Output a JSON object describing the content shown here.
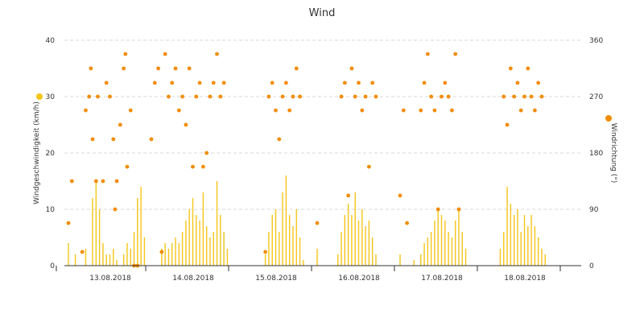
{
  "chart_data": {
    "type": "bar+scatter",
    "title": "Wind",
    "x_axis": {
      "type": "datetime",
      "tick_labels": [
        "13.08.2018",
        "14.08.2018",
        "15.08.2018",
        "16.08.2018",
        "17.08.2018",
        "18.08.2018"
      ]
    },
    "y_left": {
      "label": "Windgeschwindigkeit (km/h)",
      "min": 0,
      "max": 40,
      "ticks": [
        0,
        10,
        20,
        30,
        40
      ]
    },
    "y_right": {
      "label": "Windrichtung (°)",
      "min": 0,
      "max": 360,
      "ticks": [
        0,
        90,
        180,
        270,
        360
      ]
    },
    "grid": true,
    "colors": {
      "speed": "#f5c518",
      "direction": "#f28c00",
      "legend_speed_dot": "#f5c518",
      "legend_direction_dot": "#f28c00"
    },
    "series": [
      {
        "name": "Windgeschwindigkeit",
        "kind": "bars",
        "axis": "left",
        "points": [
          {
            "x": "2018-08-13 00:00",
            "y": 4
          },
          {
            "x": "2018-08-13 02:00",
            "y": 2
          },
          {
            "x": "2018-08-13 05:00",
            "y": 3
          },
          {
            "x": "2018-08-13 07:00",
            "y": 12
          },
          {
            "x": "2018-08-13 08:00",
            "y": 15
          },
          {
            "x": "2018-08-13 09:00",
            "y": 10
          },
          {
            "x": "2018-08-13 10:00",
            "y": 4
          },
          {
            "x": "2018-08-13 11:00",
            "y": 2
          },
          {
            "x": "2018-08-13 12:00",
            "y": 2
          },
          {
            "x": "2018-08-13 13:00",
            "y": 3
          },
          {
            "x": "2018-08-13 14:00",
            "y": 1
          },
          {
            "x": "2018-08-13 16:00",
            "y": 2
          },
          {
            "x": "2018-08-13 17:00",
            "y": 4
          },
          {
            "x": "2018-08-13 18:00",
            "y": 3
          },
          {
            "x": "2018-08-13 19:00",
            "y": 6
          },
          {
            "x": "2018-08-13 20:00",
            "y": 12
          },
          {
            "x": "2018-08-13 21:00",
            "y": 14
          },
          {
            "x": "2018-08-13 22:00",
            "y": 5
          },
          {
            "x": "2018-08-14 03:00",
            "y": 3
          },
          {
            "x": "2018-08-14 04:00",
            "y": 4
          },
          {
            "x": "2018-08-14 05:00",
            "y": 3
          },
          {
            "x": "2018-08-14 06:00",
            "y": 4
          },
          {
            "x": "2018-08-14 07:00",
            "y": 5
          },
          {
            "x": "2018-08-14 08:00",
            "y": 4
          },
          {
            "x": "2018-08-14 09:00",
            "y": 6
          },
          {
            "x": "2018-08-14 10:00",
            "y": 8
          },
          {
            "x": "2018-08-14 11:00",
            "y": 10
          },
          {
            "x": "2018-08-14 12:00",
            "y": 12
          },
          {
            "x": "2018-08-14 13:00",
            "y": 9
          },
          {
            "x": "2018-08-14 14:00",
            "y": 8
          },
          {
            "x": "2018-08-14 15:00",
            "y": 13
          },
          {
            "x": "2018-08-14 16:00",
            "y": 7
          },
          {
            "x": "2018-08-14 17:00",
            "y": 5
          },
          {
            "x": "2018-08-14 18:00",
            "y": 6
          },
          {
            "x": "2018-08-14 19:00",
            "y": 15
          },
          {
            "x": "2018-08-14 20:00",
            "y": 9
          },
          {
            "x": "2018-08-14 21:00",
            "y": 6
          },
          {
            "x": "2018-08-14 22:00",
            "y": 3
          },
          {
            "x": "2018-08-15 09:00",
            "y": 2
          },
          {
            "x": "2018-08-15 10:00",
            "y": 6
          },
          {
            "x": "2018-08-15 11:00",
            "y": 9
          },
          {
            "x": "2018-08-15 12:00",
            "y": 10
          },
          {
            "x": "2018-08-15 13:00",
            "y": 6
          },
          {
            "x": "2018-08-15 14:00",
            "y": 13
          },
          {
            "x": "2018-08-15 15:00",
            "y": 16
          },
          {
            "x": "2018-08-15 16:00",
            "y": 9
          },
          {
            "x": "2018-08-15 17:00",
            "y": 7
          },
          {
            "x": "2018-08-15 18:00",
            "y": 10
          },
          {
            "x": "2018-08-15 19:00",
            "y": 5
          },
          {
            "x": "2018-08-15 20:00",
            "y": 1
          },
          {
            "x": "2018-08-16 00:00",
            "y": 3
          },
          {
            "x": "2018-08-16 06:00",
            "y": 2
          },
          {
            "x": "2018-08-16 07:00",
            "y": 6
          },
          {
            "x": "2018-08-16 08:00",
            "y": 9
          },
          {
            "x": "2018-08-16 09:00",
            "y": 11
          },
          {
            "x": "2018-08-16 10:00",
            "y": 9
          },
          {
            "x": "2018-08-16 11:00",
            "y": 13
          },
          {
            "x": "2018-08-16 12:00",
            "y": 8
          },
          {
            "x": "2018-08-16 13:00",
            "y": 10
          },
          {
            "x": "2018-08-16 14:00",
            "y": 7
          },
          {
            "x": "2018-08-16 15:00",
            "y": 8
          },
          {
            "x": "2018-08-16 16:00",
            "y": 5
          },
          {
            "x": "2018-08-16 17:00",
            "y": 2
          },
          {
            "x": "2018-08-17 00:00",
            "y": 2
          },
          {
            "x": "2018-08-17 04:00",
            "y": 1
          },
          {
            "x": "2018-08-17 06:00",
            "y": 2
          },
          {
            "x": "2018-08-17 07:00",
            "y": 4
          },
          {
            "x": "2018-08-17 08:00",
            "y": 5
          },
          {
            "x": "2018-08-17 09:00",
            "y": 6
          },
          {
            "x": "2018-08-17 10:00",
            "y": 8
          },
          {
            "x": "2018-08-17 11:00",
            "y": 10
          },
          {
            "x": "2018-08-17 12:00",
            "y": 9
          },
          {
            "x": "2018-08-17 13:00",
            "y": 8
          },
          {
            "x": "2018-08-17 14:00",
            "y": 6
          },
          {
            "x": "2018-08-17 15:00",
            "y": 5
          },
          {
            "x": "2018-08-17 16:00",
            "y": 8
          },
          {
            "x": "2018-08-17 17:00",
            "y": 10
          },
          {
            "x": "2018-08-17 18:00",
            "y": 6
          },
          {
            "x": "2018-08-17 19:00",
            "y": 3
          },
          {
            "x": "2018-08-18 05:00",
            "y": 3
          },
          {
            "x": "2018-08-18 06:00",
            "y": 6
          },
          {
            "x": "2018-08-18 07:00",
            "y": 14
          },
          {
            "x": "2018-08-18 08:00",
            "y": 11
          },
          {
            "x": "2018-08-18 09:00",
            "y": 9
          },
          {
            "x": "2018-08-18 10:00",
            "y": 10
          },
          {
            "x": "2018-08-18 11:00",
            "y": 6
          },
          {
            "x": "2018-08-18 12:00",
            "y": 9
          },
          {
            "x": "2018-08-18 13:00",
            "y": 7
          },
          {
            "x": "2018-08-18 14:00",
            "y": 9
          },
          {
            "x": "2018-08-18 15:00",
            "y": 7
          },
          {
            "x": "2018-08-18 16:00",
            "y": 5
          },
          {
            "x": "2018-08-18 17:00",
            "y": 3
          },
          {
            "x": "2018-08-18 18:00",
            "y": 2
          }
        ]
      },
      {
        "name": "Windrichtung",
        "kind": "scatter",
        "axis": "right",
        "points": [
          {
            "x": "2018-08-13 00:00",
            "y": 68
          },
          {
            "x": "2018-08-13 01:00",
            "y": 135
          },
          {
            "x": "2018-08-13 04:00",
            "y": 22
          },
          {
            "x": "2018-08-13 05:00",
            "y": 248
          },
          {
            "x": "2018-08-13 06:00",
            "y": 270
          },
          {
            "x": "2018-08-13 06:30",
            "y": 315
          },
          {
            "x": "2018-08-13 07:00",
            "y": 202
          },
          {
            "x": "2018-08-13 08:00",
            "y": 135
          },
          {
            "x": "2018-08-13 08:30",
            "y": 270
          },
          {
            "x": "2018-08-13 10:00",
            "y": 135
          },
          {
            "x": "2018-08-13 11:00",
            "y": 292
          },
          {
            "x": "2018-08-13 12:00",
            "y": 270
          },
          {
            "x": "2018-08-13 13:00",
            "y": 202
          },
          {
            "x": "2018-08-13 13:30",
            "y": 90
          },
          {
            "x": "2018-08-13 14:00",
            "y": 135
          },
          {
            "x": "2018-08-13 15:00",
            "y": 225
          },
          {
            "x": "2018-08-13 16:00",
            "y": 315
          },
          {
            "x": "2018-08-13 16:30",
            "y": 338
          },
          {
            "x": "2018-08-13 17:00",
            "y": 158
          },
          {
            "x": "2018-08-13 18:00",
            "y": 248
          },
          {
            "x": "2018-08-13 19:00",
            "y": 0
          },
          {
            "x": "2018-08-13 20:00",
            "y": 0
          },
          {
            "x": "2018-08-14 00:00",
            "y": 202
          },
          {
            "x": "2018-08-14 01:00",
            "y": 292
          },
          {
            "x": "2018-08-14 02:00",
            "y": 315
          },
          {
            "x": "2018-08-14 03:00",
            "y": 22
          },
          {
            "x": "2018-08-14 04:00",
            "y": 338
          },
          {
            "x": "2018-08-14 05:00",
            "y": 270
          },
          {
            "x": "2018-08-14 06:00",
            "y": 292
          },
          {
            "x": "2018-08-14 07:00",
            "y": 315
          },
          {
            "x": "2018-08-14 08:00",
            "y": 248
          },
          {
            "x": "2018-08-14 09:00",
            "y": 270
          },
          {
            "x": "2018-08-14 10:00",
            "y": 225
          },
          {
            "x": "2018-08-14 11:00",
            "y": 315
          },
          {
            "x": "2018-08-14 12:00",
            "y": 158
          },
          {
            "x": "2018-08-14 13:00",
            "y": 270
          },
          {
            "x": "2018-08-14 14:00",
            "y": 292
          },
          {
            "x": "2018-08-14 15:00",
            "y": 158
          },
          {
            "x": "2018-08-14 16:00",
            "y": 180
          },
          {
            "x": "2018-08-14 17:00",
            "y": 270
          },
          {
            "x": "2018-08-14 18:00",
            "y": 292
          },
          {
            "x": "2018-08-14 19:00",
            "y": 338
          },
          {
            "x": "2018-08-14 20:00",
            "y": 270
          },
          {
            "x": "2018-08-14 21:00",
            "y": 292
          },
          {
            "x": "2018-08-15 09:00",
            "y": 22
          },
          {
            "x": "2018-08-15 10:00",
            "y": 270
          },
          {
            "x": "2018-08-15 11:00",
            "y": 292
          },
          {
            "x": "2018-08-15 12:00",
            "y": 248
          },
          {
            "x": "2018-08-15 13:00",
            "y": 202
          },
          {
            "x": "2018-08-15 14:00",
            "y": 270
          },
          {
            "x": "2018-08-15 15:00",
            "y": 292
          },
          {
            "x": "2018-08-15 16:00",
            "y": 248
          },
          {
            "x": "2018-08-15 17:00",
            "y": 270
          },
          {
            "x": "2018-08-15 18:00",
            "y": 315
          },
          {
            "x": "2018-08-15 19:00",
            "y": 270
          },
          {
            "x": "2018-08-16 00:00",
            "y": 68
          },
          {
            "x": "2018-08-16 07:00",
            "y": 270
          },
          {
            "x": "2018-08-16 08:00",
            "y": 292
          },
          {
            "x": "2018-08-16 09:00",
            "y": 112
          },
          {
            "x": "2018-08-16 10:00",
            "y": 315
          },
          {
            "x": "2018-08-16 11:00",
            "y": 270
          },
          {
            "x": "2018-08-16 12:00",
            "y": 292
          },
          {
            "x": "2018-08-16 13:00",
            "y": 248
          },
          {
            "x": "2018-08-16 14:00",
            "y": 270
          },
          {
            "x": "2018-08-16 15:00",
            "y": 158
          },
          {
            "x": "2018-08-16 16:00",
            "y": 292
          },
          {
            "x": "2018-08-16 17:00",
            "y": 270
          },
          {
            "x": "2018-08-17 00:00",
            "y": 112
          },
          {
            "x": "2018-08-17 01:00",
            "y": 248
          },
          {
            "x": "2018-08-17 02:00",
            "y": 68
          },
          {
            "x": "2018-08-17 06:00",
            "y": 248
          },
          {
            "x": "2018-08-17 07:00",
            "y": 292
          },
          {
            "x": "2018-08-17 08:00",
            "y": 338
          },
          {
            "x": "2018-08-17 09:00",
            "y": 270
          },
          {
            "x": "2018-08-17 10:00",
            "y": 248
          },
          {
            "x": "2018-08-17 11:00",
            "y": 90
          },
          {
            "x": "2018-08-17 12:00",
            "y": 270
          },
          {
            "x": "2018-08-17 13:00",
            "y": 292
          },
          {
            "x": "2018-08-17 14:00",
            "y": 270
          },
          {
            "x": "2018-08-17 15:00",
            "y": 248
          },
          {
            "x": "2018-08-17 16:00",
            "y": 338
          },
          {
            "x": "2018-08-17 17:00",
            "y": 90
          },
          {
            "x": "2018-08-18 06:00",
            "y": 270
          },
          {
            "x": "2018-08-18 07:00",
            "y": 225
          },
          {
            "x": "2018-08-18 08:00",
            "y": 315
          },
          {
            "x": "2018-08-18 09:00",
            "y": 270
          },
          {
            "x": "2018-08-18 10:00",
            "y": 292
          },
          {
            "x": "2018-08-18 11:00",
            "y": 248
          },
          {
            "x": "2018-08-18 12:00",
            "y": 270
          },
          {
            "x": "2018-08-18 13:00",
            "y": 315
          },
          {
            "x": "2018-08-18 14:00",
            "y": 270
          },
          {
            "x": "2018-08-18 15:00",
            "y": 248
          },
          {
            "x": "2018-08-18 16:00",
            "y": 292
          },
          {
            "x": "2018-08-18 17:00",
            "y": 270
          }
        ]
      }
    ]
  }
}
